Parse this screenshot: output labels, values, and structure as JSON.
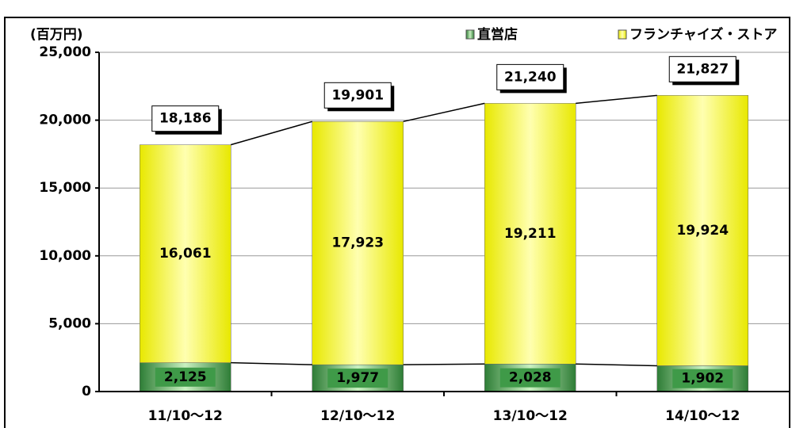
{
  "chart_data": {
    "type": "stacked_bar",
    "unit_label": "(百万円)",
    "categories": [
      "11/10～12",
      "12/10～12",
      "13/10～12",
      "14/10～12"
    ],
    "series": [
      {
        "name": "直営店",
        "color": "#3f9a48",
        "values": [
          2125,
          1977,
          2028,
          1902
        ],
        "value_labels": [
          "2,125",
          "1,977",
          "2,028",
          "1,902"
        ]
      },
      {
        "name": "フランチャイズ・ストア",
        "color": "#ffff66",
        "values": [
          16061,
          17923,
          19211,
          19924
        ],
        "value_labels": [
          "16,061",
          "17,923",
          "19,211",
          "19,924"
        ]
      }
    ],
    "totals": {
      "values": [
        18186,
        19901,
        21240,
        21827
      ],
      "value_labels": [
        "18,186",
        "19,901",
        "21,240",
        "21,827"
      ]
    },
    "ylim": [
      0,
      25000
    ],
    "yticks": [
      0,
      {
        "value": 5000,
        "label": "5,000"
      },
      {
        "value": 10000,
        "label": "10,000"
      },
      {
        "value": 15000,
        "label": "15,000"
      },
      {
        "value": 20000,
        "label": "20,000"
      },
      {
        "value": 25000,
        "label": "25,000"
      }
    ],
    "grid": true,
    "legend": "top-right"
  }
}
